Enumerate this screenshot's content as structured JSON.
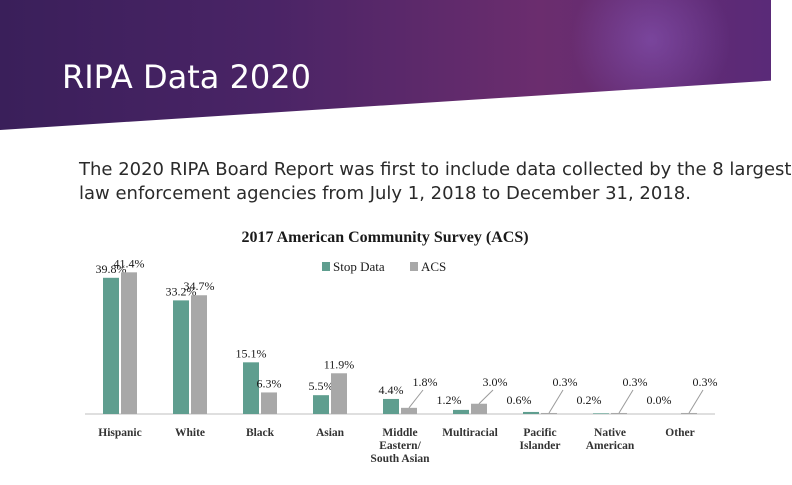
{
  "slide": {
    "title": "RIPA Data 2020",
    "body_lines": [
      "The 2020 RIPA Board Report was first to include data collected by the 8 largest",
      "law enforcement agencies from July 1, 2018 to December 31, 2018."
    ]
  },
  "colors": {
    "header_accent": "#4a2466",
    "stop_data": "#5f9e8f",
    "acs": "#a8a8a8"
  },
  "chart_data": {
    "type": "bar",
    "title": "2017 American Community Survey (ACS)",
    "categories": [
      [
        "Hispanic"
      ],
      [
        "White"
      ],
      [
        "Black"
      ],
      [
        "Asian"
      ],
      [
        "Middle",
        "Eastern/",
        "South Asian"
      ],
      [
        "Multiracial"
      ],
      [
        "Pacific",
        "Islander"
      ],
      [
        "Native",
        "American"
      ],
      [
        "Other"
      ]
    ],
    "series": [
      {
        "name": "Stop Data",
        "values": [
          39.8,
          33.2,
          15.1,
          5.5,
          4.4,
          1.2,
          0.6,
          0.2,
          0.0
        ],
        "labels": [
          "39.8%",
          "33.2%",
          "15.1%",
          "5.5%",
          "4.4%",
          "1.2%",
          "0.6%",
          "0.2%",
          "0.0%"
        ]
      },
      {
        "name": "ACS",
        "values": [
          41.4,
          34.7,
          6.3,
          11.9,
          1.8,
          3.0,
          0.3,
          0.3,
          0.3
        ],
        "labels": [
          "41.4%",
          "34.7%",
          "6.3%",
          "11.9%",
          "1.8%",
          "3.0%",
          "0.3%",
          "0.3%",
          "0.3%"
        ]
      }
    ],
    "ylim": [
      0,
      45
    ],
    "legend_position": "top-center",
    "grid": false
  }
}
